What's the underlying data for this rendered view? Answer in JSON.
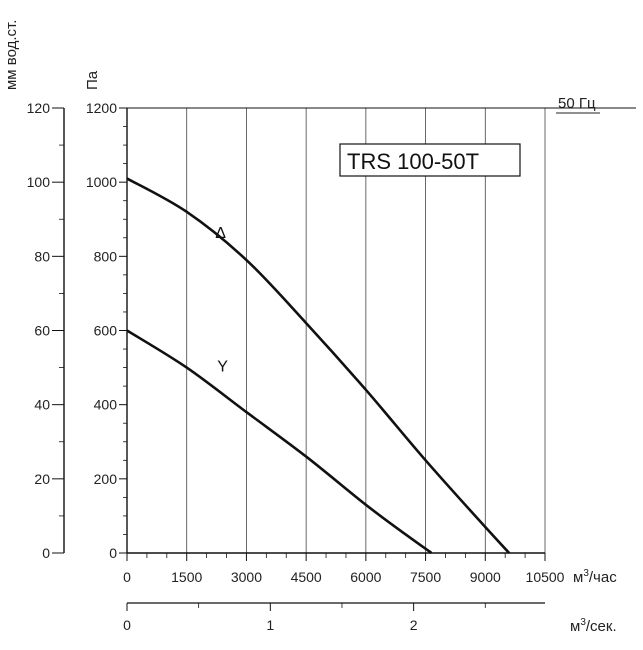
{
  "chart_data": {
    "type": "line",
    "model_label": "TRS 100-50T",
    "frequency_label": "50 Гц",
    "x_unit_main": "м³/час",
    "x_unit_secondary": "м³/сек.",
    "y_unit_left": "мм вод.ст.",
    "y_unit_right": "Па",
    "xlim": [
      0,
      10500
    ],
    "ylim": [
      0,
      1200
    ],
    "x_ticks": [
      "0",
      "1500",
      "3000",
      "4500",
      "6000",
      "7500",
      "9000",
      "10500"
    ],
    "x_tick_values": [
      0,
      1500,
      3000,
      4500,
      6000,
      7500,
      9000,
      10500
    ],
    "x2_ticks": [
      "0",
      "1",
      "2"
    ],
    "x2_tick_values": [
      0,
      1,
      2
    ],
    "x2_lim": [
      0,
      2.9167
    ],
    "y_pa_ticks": [
      "0",
      "200",
      "400",
      "600",
      "800",
      "1000",
      "1200"
    ],
    "y_pa_values": [
      0,
      200,
      400,
      600,
      800,
      1000,
      1200
    ],
    "y_mm_ticks": [
      "0",
      "20",
      "40",
      "60",
      "80",
      "100",
      "120"
    ],
    "y_mm_values": [
      0,
      20,
      40,
      60,
      80,
      100,
      120
    ],
    "grid": true,
    "series": [
      {
        "name": "Δ",
        "x": [
          0,
          1500,
          3000,
          4500,
          6000,
          7500,
          9000,
          9600
        ],
        "y": [
          1010,
          920,
          790,
          620,
          440,
          250,
          70,
          0
        ],
        "label_at": [
          2350,
          850
        ]
      },
      {
        "name": "Y",
        "x": [
          0,
          1500,
          3000,
          4500,
          6000,
          7000,
          7650
        ],
        "y": [
          600,
          500,
          380,
          260,
          130,
          50,
          0
        ],
        "label_at": [
          2400,
          490
        ]
      }
    ]
  }
}
